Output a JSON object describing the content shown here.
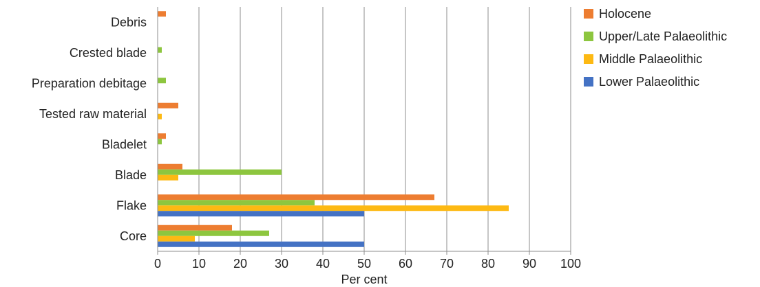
{
  "chart_data": {
    "type": "bar",
    "orientation": "horizontal",
    "categories": [
      "Core",
      "Flake",
      "Blade",
      "Bladelet",
      "Tested raw material",
      "Preparation debitage",
      "Crested blade",
      "Debris"
    ],
    "series": [
      {
        "name": "Holocene",
        "color": "#ED7D31",
        "values": [
          18,
          67,
          6,
          2,
          5,
          0,
          0,
          2
        ]
      },
      {
        "name": "Upper/Late Palaeolithic",
        "color": "#8DC63F",
        "values": [
          27,
          38,
          30,
          1,
          0,
          2,
          1,
          0
        ]
      },
      {
        "name": "Middle Palaeolithic",
        "color": "#FDB913",
        "values": [
          9,
          85,
          5,
          0,
          1,
          0,
          0,
          0
        ]
      },
      {
        "name": "Lower Palaeolithic",
        "color": "#4472C4",
        "values": [
          50,
          50,
          0,
          0,
          0,
          0,
          0,
          0
        ]
      }
    ],
    "xlabel": "Per cent",
    "xlim": [
      0,
      100
    ],
    "xticks": [
      0,
      10,
      20,
      30,
      40,
      50,
      60,
      70,
      80,
      90,
      100
    ],
    "grid": "vertical",
    "legend_position": "right",
    "legend_order": [
      "Holocene",
      "Upper/Late Palaeolithic",
      "Middle Palaeolithic",
      "Lower Palaeolithic"
    ]
  }
}
